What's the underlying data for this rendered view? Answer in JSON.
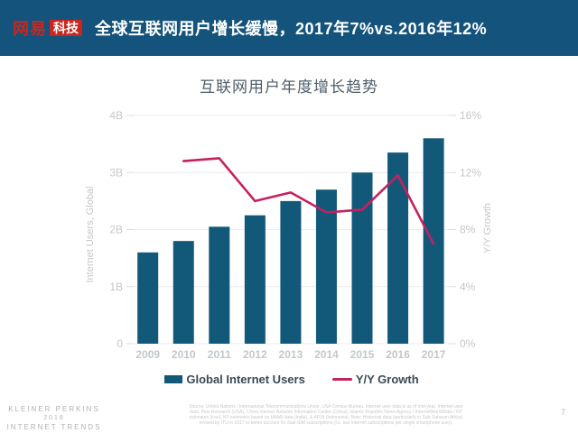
{
  "header": {
    "bg_color": "#14537C",
    "logo_red": "#C9271E",
    "logo_wangyi": "网易",
    "logo_keji": "科技",
    "title": "全球互联网用户增长缓慢，2017年7%vs.2016年12%"
  },
  "chart_data": {
    "type": "bar+line combo",
    "title": "互联网用户年度增长趋势",
    "categories": [
      "2009",
      "2010",
      "2011",
      "2012",
      "2013",
      "2014",
      "2015",
      "2016",
      "2017"
    ],
    "series": [
      {
        "name": "Global Internet Users",
        "type": "bar",
        "axis": "left",
        "color": "#125879",
        "values": [
          1.6,
          1.8,
          2.05,
          2.25,
          2.5,
          2.7,
          3.0,
          3.35,
          3.6
        ]
      },
      {
        "name": "Y/Y Growth",
        "type": "line",
        "axis": "right",
        "color": "#C42160",
        "start_index": 1,
        "values": [
          12.8,
          13.0,
          10.0,
          10.6,
          9.2,
          9.4,
          11.8,
          7.0
        ]
      }
    ],
    "left_axis": {
      "label": "Internet Users, Global",
      "unit": "B",
      "min": 0,
      "max": 4,
      "ticks": [
        "0",
        "1B",
        "2B",
        "3B",
        "4B"
      ]
    },
    "right_axis": {
      "label": "Y/Y Growth",
      "unit": "%",
      "min": 0,
      "max": 16,
      "ticks": [
        "0%",
        "4%",
        "8%",
        "12%",
        "16%"
      ]
    },
    "grid": true,
    "legend_position": "bottom"
  },
  "footer": {
    "brand_line1": "KLEINER PERKINS",
    "brand_line2": "2018",
    "brand_line3": "INTERNET TRENDS",
    "page_number": "7",
    "source_lines": [
      "Source: United Nations / International Telecommunications Union, USA Census Bureau. Internet user data is as of mid-year. Internet user",
      "data: Pew Research (USA), China Internet Network Information Center (China), Islamic Republic News Agency / InternetWorldStats / KP",
      "estimates (Iran), KP estimates based on IAMAI data (India), & APJII (Indonesia). Note: Historical data (particularly in Sub-Saharan Africa)",
      "revised by ITU in 2017 to better account for dual-SIM subscriptions (i.e. two Internet subscriptions per single smartphone user)."
    ]
  }
}
